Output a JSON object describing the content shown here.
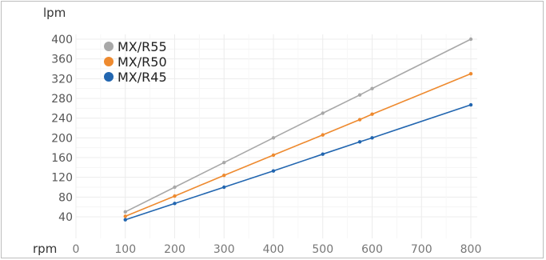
{
  "chart_data": {
    "type": "line",
    "ylabel": "lpm",
    "xlabel": "rpm",
    "xlim": [
      0,
      800
    ],
    "ylim": [
      40,
      400
    ],
    "x_ticks": [
      "0",
      "100",
      "200",
      "300",
      "400",
      "500",
      "600",
      "700",
      "800"
    ],
    "y_ticks": [
      "400",
      "360",
      "320",
      "280",
      "240",
      "200",
      "160",
      "120",
      "80",
      "40"
    ],
    "grid": true,
    "legend_position": "top-left",
    "series": [
      {
        "name": "MX/R55",
        "color": "#a8a8a8",
        "x": [
          100,
          200,
          300,
          400,
          500,
          575,
          600,
          800
        ],
        "y": [
          50,
          100,
          150,
          200,
          250,
          287,
          300,
          400
        ]
      },
      {
        "name": "MX/R50",
        "color": "#ee8a2f",
        "x": [
          100,
          200,
          300,
          400,
          500,
          575,
          600,
          800
        ],
        "y": [
          41,
          82,
          124,
          165,
          206,
          237,
          248,
          330
        ]
      },
      {
        "name": "MX/R45",
        "color": "#2266b0",
        "x": [
          100,
          200,
          300,
          400,
          500,
          575,
          600,
          800
        ],
        "y": [
          34,
          67,
          100,
          133,
          167,
          192,
          200,
          267
        ]
      }
    ]
  }
}
